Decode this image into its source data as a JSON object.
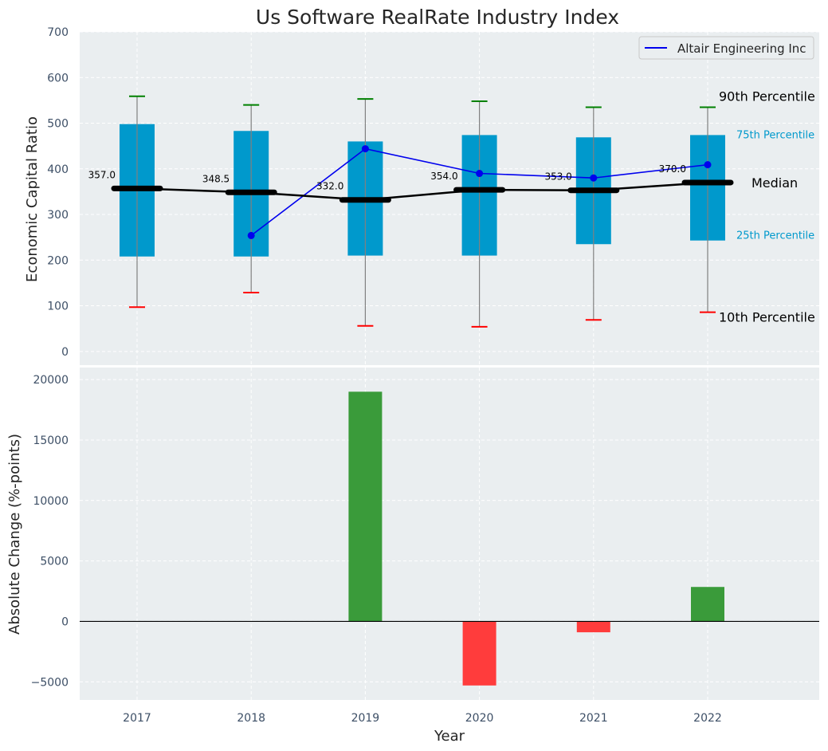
{
  "chart_data": [
    {
      "type": "box-percentile",
      "title": "Us Software RealRate Industry Index",
      "xlabel": "",
      "ylabel": "Economic Capital Ratio",
      "ylim": [
        -30,
        700
      ],
      "yticks": [
        "0",
        "100",
        "200",
        "300",
        "400",
        "500",
        "600",
        "700"
      ],
      "categories": [
        "2017",
        "2018",
        "2019",
        "2020",
        "2021",
        "2022"
      ],
      "p10": [
        97,
        129,
        56,
        54,
        69,
        86
      ],
      "p25": [
        208,
        208,
        210,
        210,
        235,
        243
      ],
      "median": [
        357.0,
        348.5,
        332.0,
        354.0,
        353.0,
        370.0
      ],
      "median_labels": [
        "357.0",
        "348.5",
        "332.0",
        "354.0",
        "353.0",
        "370.0"
      ],
      "p75": [
        498,
        483,
        460,
        474,
        469,
        474
      ],
      "p90": [
        559,
        540,
        553,
        548,
        535,
        535
      ],
      "company": {
        "name": "Altair Engineering Inc",
        "values": [
          null,
          254,
          444,
          390,
          380,
          409
        ]
      },
      "annotations": {
        "p90": "90th Percentile",
        "p75": "75th Percentile",
        "median": "Median",
        "p25": "25th Percentile",
        "p10": "10th Percentile"
      },
      "legend": "top-right",
      "grid": true,
      "colors": {
        "box": "#0099cc",
        "median": "#000000",
        "company": "#0000ee",
        "p90": "#008000",
        "p10": "#ff0000",
        "whisker": "#808080",
        "background": "#eaeef0"
      }
    },
    {
      "type": "bar",
      "title": "",
      "xlabel": "Year",
      "ylabel": "Absolute Change (%-points)",
      "ylim": [
        -6500,
        21000
      ],
      "yticks": [
        "−5000",
        "0",
        "5000",
        "10000",
        "15000",
        "20000"
      ],
      "categories": [
        "2017",
        "2018",
        "2019",
        "2020",
        "2021",
        "2022"
      ],
      "values": [
        0,
        0,
        19000,
        -5300,
        -900,
        2850
      ],
      "grid": true,
      "colors": {
        "positive": "#3a9b3a",
        "negative": "#ff3c3c",
        "zero_line": "#000000"
      }
    }
  ]
}
